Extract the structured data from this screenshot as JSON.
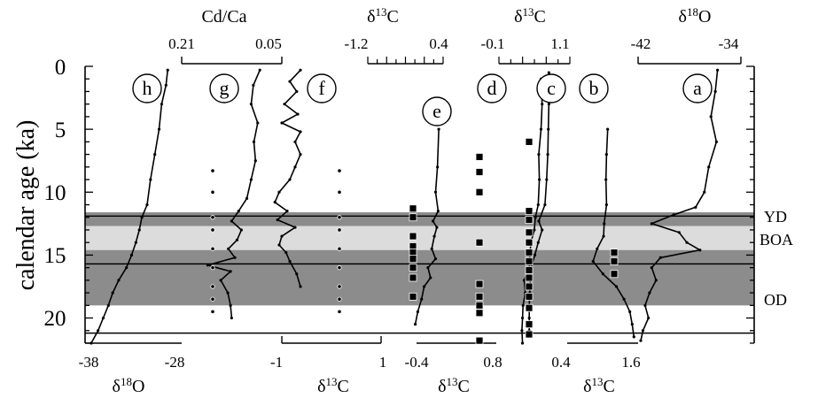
{
  "chart_data": {
    "type": "line",
    "y_axis": {
      "label": "calendar age (ka)",
      "ticks": [
        "0",
        "5",
        "10",
        "15",
        "20"
      ],
      "range": [
        0,
        22
      ],
      "inverted": true
    },
    "bands": [
      {
        "label": "YD",
        "from_ka": 11.6,
        "to_ka": 12.7,
        "shade": "#8c8c8c"
      },
      {
        "label": "BOA",
        "from_ka": 12.7,
        "to_ka": 14.6,
        "shade": "#dcdcdc"
      },
      {
        "label": "",
        "from_ka": 14.6,
        "to_ka": 15.6,
        "shade": "#8c8c8c"
      },
      {
        "label": "OD",
        "from_ka": 15.6,
        "to_ka": 19.0,
        "shade": "#8c8c8c"
      }
    ],
    "hlines_ka": [
      11.9,
      15.7,
      21.2
    ],
    "series": [
      {
        "name": "h",
        "axis": "δ18O",
        "points": [
          [
            0.3,
            -28.8
          ],
          [
            1.5,
            -29.0
          ],
          [
            3,
            -29.5
          ],
          [
            5,
            -29.8
          ],
          [
            7,
            -30.3
          ],
          [
            9,
            -30.8
          ],
          [
            11,
            -31.2
          ],
          [
            12,
            -31.8
          ],
          [
            13,
            -32.1
          ],
          [
            14,
            -32.5
          ],
          [
            15,
            -33.0
          ],
          [
            16,
            -33.6
          ],
          [
            17,
            -34.5
          ],
          [
            18,
            -35.2
          ],
          [
            19,
            -35.7
          ],
          [
            20,
            -36.3
          ],
          [
            21,
            -36.9
          ],
          [
            22,
            -37.7
          ]
        ]
      },
      {
        "name": "g",
        "axis": "Cd/Ca",
        "points": [
          [
            0.3,
            0.066
          ],
          [
            1.5,
            0.078
          ],
          [
            3,
            0.082
          ],
          [
            4.5,
            0.07
          ],
          [
            6,
            0.077
          ],
          [
            7.5,
            0.074
          ],
          [
            9,
            0.082
          ],
          [
            10.5,
            0.09
          ],
          [
            11.5,
            0.105
          ],
          [
            12.3,
            0.118
          ],
          [
            13,
            0.1
          ],
          [
            13.8,
            0.108
          ],
          [
            14.5,
            0.124
          ],
          [
            15.2,
            0.112
          ],
          [
            15.8,
            0.162
          ],
          [
            16.3,
            0.12
          ],
          [
            17,
            0.138
          ],
          [
            18,
            0.125
          ],
          [
            19,
            0.12
          ],
          [
            20,
            0.118
          ]
        ]
      },
      {
        "name": "f",
        "axis": "δ13C",
        "points": [
          [
            0.3,
            -0.55
          ],
          [
            1.2,
            -0.75
          ],
          [
            2,
            -0.62
          ],
          [
            3,
            -0.85
          ],
          [
            3.8,
            -0.6
          ],
          [
            4.5,
            -0.9
          ],
          [
            5.2,
            -0.55
          ],
          [
            6,
            -0.65
          ],
          [
            7,
            -0.55
          ],
          [
            8,
            -0.65
          ],
          [
            9,
            -0.75
          ],
          [
            10,
            -0.95
          ],
          [
            10.8,
            -1.03
          ],
          [
            11.5,
            -0.8
          ],
          [
            12.2,
            -0.98
          ],
          [
            12.8,
            -0.65
          ],
          [
            13.5,
            -0.9
          ],
          [
            14.2,
            -0.95
          ],
          [
            14.8,
            -0.82
          ],
          [
            15.5,
            -0.75
          ],
          [
            16.5,
            -0.62
          ],
          [
            17.5,
            -0.55
          ]
        ]
      },
      {
        "name": "e",
        "axis": "δ13C",
        "points": [
          [
            5,
            -0.05
          ],
          [
            8,
            -0.07
          ],
          [
            10,
            -0.1
          ],
          [
            11.5,
            -0.06
          ],
          [
            12.3,
            -0.14
          ],
          [
            12.8,
            -0.08
          ],
          [
            13.5,
            -0.12
          ],
          [
            14.5,
            -0.16
          ],
          [
            15.3,
            -0.1
          ],
          [
            16,
            -0.22
          ],
          [
            16.8,
            -0.18
          ],
          [
            17.5,
            -0.28
          ],
          [
            18.5,
            -0.32
          ],
          [
            19.5,
            -0.38
          ],
          [
            20.5,
            -0.42
          ]
        ]
      },
      {
        "name": "d",
        "axis": "δ13C",
        "points": [
          [
            1,
            0.76
          ],
          [
            3,
            0.78
          ],
          [
            5,
            0.76
          ],
          [
            7,
            0.72
          ],
          [
            9,
            0.73
          ],
          [
            11,
            0.71
          ],
          [
            12,
            0.66
          ],
          [
            13,
            0.64
          ],
          [
            14,
            0.58
          ],
          [
            15,
            0.56
          ],
          [
            16,
            0.55
          ],
          [
            17,
            0.46
          ],
          [
            18,
            0.48
          ],
          [
            19,
            0.44
          ],
          [
            20,
            0.43
          ],
          [
            21,
            0.42
          ],
          [
            22,
            0.43
          ]
        ]
      },
      {
        "name": "c",
        "axis": "δ13C",
        "points": [
          [
            0.5,
            0.9
          ],
          [
            3,
            0.9
          ],
          [
            5,
            0.89
          ],
          [
            7,
            0.88
          ],
          [
            9,
            0.86
          ],
          [
            11,
            0.83
          ],
          [
            12.3,
            0.72
          ],
          [
            13,
            0.78
          ],
          [
            14,
            0.71
          ],
          [
            15,
            0.65
          ],
          [
            16,
            0.58
          ],
          [
            17,
            0.57
          ],
          [
            18,
            0.56
          ],
          [
            19,
            0.55
          ],
          [
            20,
            0.55
          ],
          [
            21,
            0.55
          ]
        ]
      },
      {
        "name": "b",
        "axis": "δ13C",
        "points": [
          [
            5,
            1.2
          ],
          [
            7,
            1.18
          ],
          [
            9,
            1.17
          ],
          [
            11,
            1.18
          ],
          [
            12.5,
            1.14
          ],
          [
            13.5,
            1.13
          ],
          [
            14.5,
            1.02
          ],
          [
            15.5,
            0.95
          ],
          [
            16.5,
            1.12
          ],
          [
            17.5,
            1.35
          ],
          [
            18.5,
            1.48
          ],
          [
            19.5,
            1.58
          ],
          [
            20.5,
            1.62
          ],
          [
            21.5,
            1.65
          ]
        ]
      },
      {
        "name": "a",
        "axis": "δ18O",
        "points": [
          [
            0.3,
            -35.0
          ],
          [
            2,
            -35.2
          ],
          [
            4,
            -35.6
          ],
          [
            6,
            -35.1
          ],
          [
            8,
            -35.8
          ],
          [
            10,
            -36.2
          ],
          [
            11.2,
            -37.0
          ],
          [
            11.8,
            -39.0
          ],
          [
            12.5,
            -41.0
          ],
          [
            13.2,
            -38.5
          ],
          [
            14,
            -37.8
          ],
          [
            14.6,
            -36.6
          ],
          [
            15.2,
            -40.2
          ],
          [
            16,
            -41.0
          ],
          [
            17,
            -40.6
          ],
          [
            18,
            -41.2
          ],
          [
            19,
            -41.6
          ],
          [
            20,
            -41.3
          ],
          [
            21,
            -41.8
          ],
          [
            21.8,
            -42.0
          ]
        ]
      }
    ],
    "dot_columns": [
      {
        "between": "h-g",
        "ages_ka": [
          8.3,
          10,
          12,
          13,
          14.5,
          16,
          17.5,
          18.5,
          19.5
        ]
      },
      {
        "between": "f-e",
        "ages_ka": [
          8.3,
          10,
          12,
          13,
          14.5,
          16,
          17.5,
          18.5,
          19.5
        ]
      }
    ],
    "square_columns": [
      {
        "column": 1,
        "ages_ka": [
          11.3,
          12,
          13.5,
          14.3,
          14.8,
          15.3,
          16,
          16.8,
          18.3
        ]
      },
      {
        "column": 2,
        "ages_ka": [
          7.2,
          8.4,
          10,
          14,
          17.3,
          18.3,
          19,
          19.6,
          21.8
        ]
      },
      {
        "column": 3,
        "ages_ka": [
          6,
          11.5,
          12.2,
          13.2,
          14,
          14.8,
          15.5,
          16.2,
          16.8,
          17.5,
          18.3,
          19.2,
          20.5,
          21.3
        ]
      },
      {
        "column": 4,
        "ages_ka": [
          14.8,
          15.5,
          16.5
        ]
      }
    ],
    "grid": false
  },
  "labels": {
    "y_title": "calendar age (ka)",
    "top_cdca": "Cd/Ca",
    "top_cdca_left": "0.21",
    "top_cdca_right": "0.05",
    "top_d13c_1": "δ13C",
    "top_d13c_1_left": "-1.2",
    "top_d13c_1_right": "0.4",
    "top_d13c_2": "δ13C",
    "top_d13c_2_left": "-0.1",
    "top_d13c_2_right": "1.1",
    "top_d18o": "δ18O",
    "top_d18o_left": "-42",
    "top_d18o_right": "-34",
    "bot_d18o_left": "-38",
    "bot_d18o_right": "-28",
    "bot_d18o": "δ18O",
    "bot_d13c_1_left": "-1",
    "bot_d13c_1_right": "1",
    "bot_d13c_1": "δ13C",
    "bot_d13c_2_left": "-0.4",
    "bot_d13c_2_right": "0.8",
    "bot_d13c_2": "δ13C",
    "bot_d13c_3_left": "0.4",
    "bot_d13c_3_right": "1.6",
    "bot_d13c_3": "δ13C",
    "yd": "YD",
    "boa": "BOA",
    "od": "OD",
    "circle_a": "a",
    "circle_b": "b",
    "circle_c": "c",
    "circle_d": "d",
    "circle_e": "e",
    "circle_f": "f",
    "circle_g": "g",
    "circle_h": "h",
    "y_ticks": [
      "0",
      "5",
      "10",
      "15",
      "20"
    ]
  }
}
